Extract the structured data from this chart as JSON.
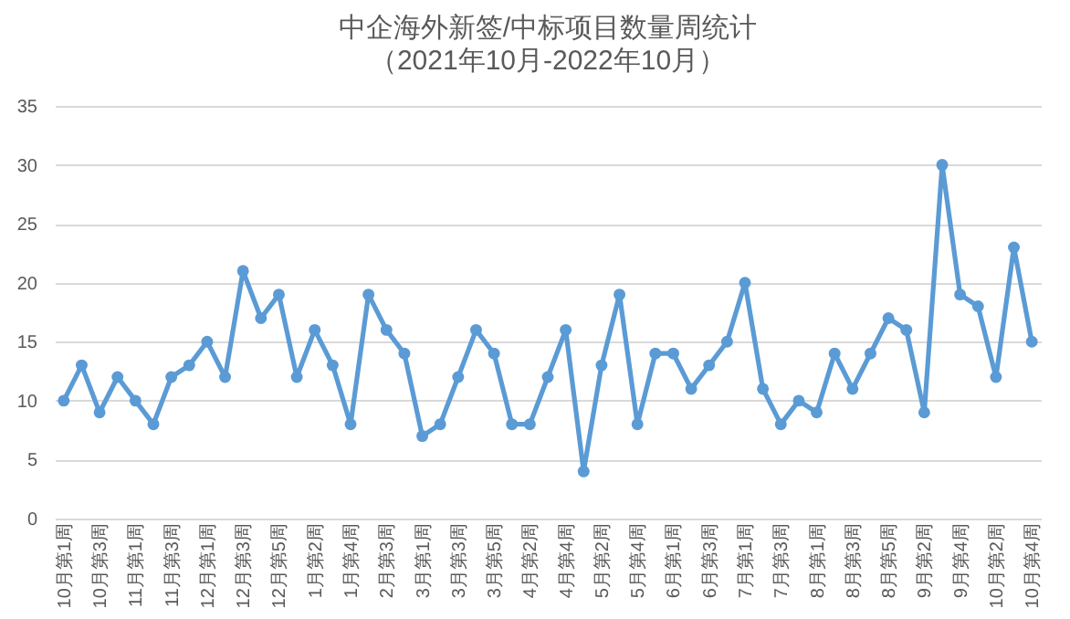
{
  "chart_data": {
    "type": "line",
    "title": "中企海外新签/中标项目数量周统计",
    "subtitle": "（2021年10月-2022年10月）",
    "categories": [
      "10月第1周",
      null,
      "10月第3周",
      null,
      "11月第1周",
      null,
      "11月第3周",
      null,
      "12月第1周",
      null,
      "12月第3周",
      null,
      "12月第5周",
      null,
      "1月第2周",
      null,
      "1月第4周",
      null,
      "2月第3周",
      null,
      "3月第1周",
      null,
      "3月第3周",
      null,
      "3月第5周",
      null,
      "4月第2周",
      null,
      "4月第4周",
      null,
      "5月第2周",
      null,
      "5月第4周",
      null,
      "6月第1周",
      null,
      "6月第3周",
      null,
      "7月第1周",
      null,
      "7月第3周",
      null,
      "8月第1周",
      null,
      "8月第3周",
      null,
      "8月第5周",
      null,
      "9月第2周",
      null,
      "9月第4周",
      null,
      "10月第2周",
      null,
      "10月第4周"
    ],
    "series": [
      {
        "color": "#5b9bd5",
        "values": [
          10,
          13,
          9,
          12,
          10,
          8,
          12,
          13,
          15,
          12,
          21,
          17,
          19,
          12,
          16,
          13,
          8,
          19,
          16,
          14,
          7,
          8,
          12,
          16,
          14,
          8,
          8,
          12,
          16,
          4,
          13,
          19,
          8,
          14,
          14,
          11,
          13,
          15,
          20,
          11,
          8,
          10,
          9,
          14,
          11,
          14,
          17,
          16,
          9,
          30,
          19,
          18,
          12,
          23,
          15
        ]
      }
    ],
    "ylim": [
      0,
      35
    ],
    "yticks": [
      0,
      5,
      10,
      15,
      20,
      25,
      30,
      35
    ],
    "grid": "y",
    "marker": "circle",
    "line_style": "solid"
  }
}
